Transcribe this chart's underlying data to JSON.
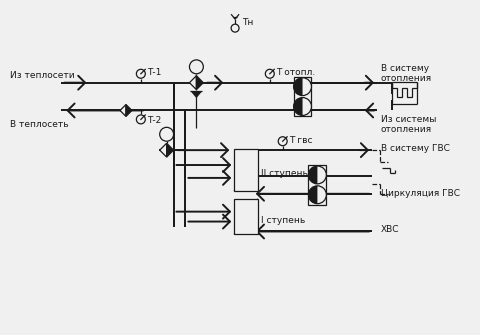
{
  "bg_color": "#f0f0f0",
  "line_color": "#1a1a1a",
  "figsize": [
    4.8,
    3.35
  ],
  "dpi": 100,
  "labels": {
    "iz_teploseti": "Из теплосети",
    "v_teplosety": "В теплосеть",
    "t1": "Т-1",
    "t2": "Т-2",
    "tn": "Тн",
    "t_otopl": "Т отопл.",
    "v_sistemu_otopleniya": "В систему\nотопления",
    "iz_sistemy_otopleniya": "Из системы\nотопления",
    "t_gvs": "Т гвс",
    "v_sistemu_gvs": "В систему ГВС",
    "tsirkulyatsiya_gvs": "Циркуляция ГВС",
    "ii_stup": "II ступень",
    "i_stup": "I ступень",
    "hvs": "ХВС"
  }
}
